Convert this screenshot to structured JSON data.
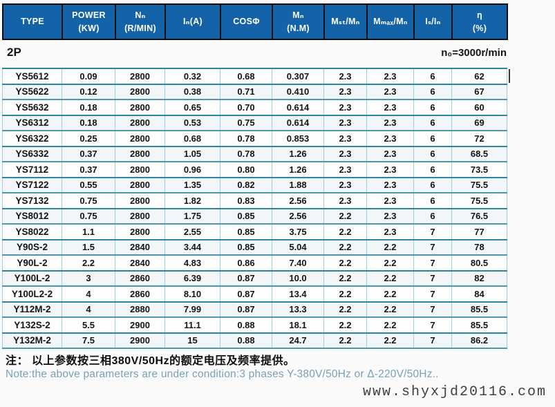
{
  "section": {
    "poles": "2P",
    "speed_note": "n₀=3000r/min"
  },
  "table": {
    "headers": [
      {
        "line1": "TYPE",
        "line2": ""
      },
      {
        "line1": "POWER",
        "line2": "(KW)"
      },
      {
        "line1": "Nₙ",
        "line2": "(R/MIN)"
      },
      {
        "line1": "Iₙ(A)",
        "line2": ""
      },
      {
        "line1": "COSΦ",
        "line2": ""
      },
      {
        "line1": "Mₙ",
        "line2": "(N.M)"
      },
      {
        "line1": "Mₛₜ/Mₙ",
        "line2": ""
      },
      {
        "line1": "Mₘₐₓ/Mₙ",
        "line2": ""
      },
      {
        "line1": "Iₛ/Iₙ",
        "line2": ""
      },
      {
        "line1": "η",
        "line2": "(%)"
      }
    ],
    "rows": [
      [
        "YS5612",
        "0.09",
        "2800",
        "0.32",
        "0.68",
        "0.307",
        "2.3",
        "2.3",
        "6",
        "62"
      ],
      [
        "YS5622",
        "0.12",
        "2800",
        "0.38",
        "0.71",
        "0.410",
        "2.3",
        "2.3",
        "6",
        "67"
      ],
      [
        "YS5632",
        "0.18",
        "2800",
        "0.65",
        "0.70",
        "0.614",
        "2.3",
        "2.3",
        "6",
        "60"
      ],
      [
        "YS6312",
        "0.18",
        "2800",
        "0.53",
        "0.75",
        "0.614",
        "2.3",
        "2.3",
        "6",
        "69"
      ],
      [
        "YS6322",
        "0.25",
        "2800",
        "0.68",
        "0.78",
        "0.853",
        "2.3",
        "2.3",
        "6",
        "72"
      ],
      [
        "YS6332",
        "0.37",
        "2800",
        "1.05",
        "0.78",
        "1.26",
        "2.3",
        "2.3",
        "6",
        "68.5"
      ],
      [
        "YS7112",
        "0.37",
        "2800",
        "0.96",
        "0.80",
        "1.26",
        "2.3",
        "2.3",
        "6",
        "73.5"
      ],
      [
        "YS7122",
        "0.55",
        "2800",
        "1.35",
        "0.82",
        "1.88",
        "2.3",
        "2.3",
        "6",
        "75.5"
      ],
      [
        "YS7132",
        "0.75",
        "2800",
        "1.82",
        "0.83",
        "2.56",
        "2.3",
        "2.3",
        "6",
        "75.5"
      ],
      [
        "YS8012",
        "0.75",
        "2800",
        "1.75",
        "0.85",
        "2.56",
        "2.2",
        "2.3",
        "6",
        "76.5"
      ],
      [
        "YS8022",
        "1.1",
        "2800",
        "2.55",
        "0.85",
        "3.75",
        "2.2",
        "2.3",
        "7",
        "77"
      ],
      [
        "Y90S-2",
        "1.5",
        "2840",
        "3.44",
        "0.85",
        "5.04",
        "2.2",
        "2.2",
        "7",
        "78"
      ],
      [
        "Y90L-2",
        "2.2",
        "2840",
        "4.83",
        "0.86",
        "7.40",
        "2.2",
        "2.2",
        "7",
        "80.5"
      ],
      [
        "Y100L-2",
        "3",
        "2860",
        "6.39",
        "0.87",
        "10.0",
        "2.2",
        "2.2",
        "7",
        "82"
      ],
      [
        "Y100L2-2",
        "4",
        "2860",
        "8.10",
        "0.87",
        "13.4",
        "2.2",
        "2.2",
        "7",
        "84"
      ],
      [
        "Y112M-2",
        "4",
        "2880",
        "7.99",
        "0.87",
        "13.3",
        "2.2",
        "2.2",
        "7",
        "85.5"
      ],
      [
        "Y132S-2",
        "5.5",
        "2900",
        "11.1",
        "0.88",
        "18.1",
        "2.2",
        "2.2",
        "7",
        "85.5"
      ],
      [
        "Y132M-2",
        "7.5",
        "2900",
        "15",
        "0.88",
        "24.7",
        "2.2",
        "2.2",
        "7",
        "86.2"
      ]
    ]
  },
  "notes": {
    "zh": "注： 以上参数按三相380V/50Hz的额定电压及频率提供。",
    "en": "Note:the above parameters are under condition:3 phases Y-380V/50Hz or Δ-220V/50Hz.."
  },
  "watermark": "www.shyxjd20116.com",
  "colors": {
    "header_bg": "#1463a8",
    "header_border": "#0d0d12",
    "grid_horizontal": "#2a86a4",
    "grid_vertical": "#a3cbdf",
    "note_en_text": "#7aa0ba"
  }
}
